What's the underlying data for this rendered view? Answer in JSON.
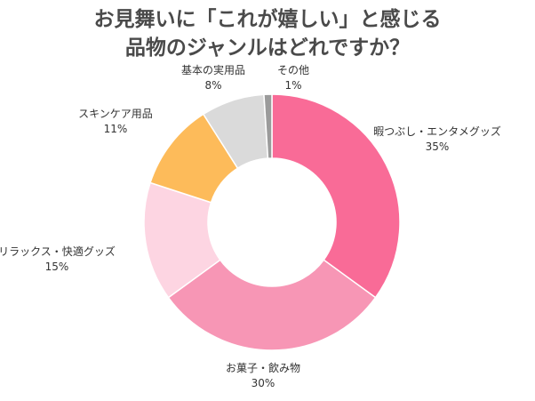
{
  "title_lines": [
    "お見舞いに「これが嬉しい」と感じる",
    "品物のジャンルはどれですか？"
  ],
  "chart_data": {
    "type": "pie",
    "variant": "donut",
    "title": "お見舞いに「これが嬉しい」と感じる品物のジャンルはどれですか？",
    "categories": [
      "暇つぶし・エンタメグッズ",
      "お菓子・飲み物",
      "リラックス・快適グッズ",
      "スキンケア用品",
      "基本の実用品",
      "その他"
    ],
    "values": [
      35,
      30,
      15,
      11,
      8,
      1
    ],
    "value_labels": [
      "35%",
      "30%",
      "15%",
      "11%",
      "8%",
      "1%"
    ],
    "unit": "%",
    "colors": [
      "#f96b97",
      "#f796b5",
      "#fdd5e2",
      "#fdbb5a",
      "#dadada",
      "#9b9b9b"
    ]
  }
}
